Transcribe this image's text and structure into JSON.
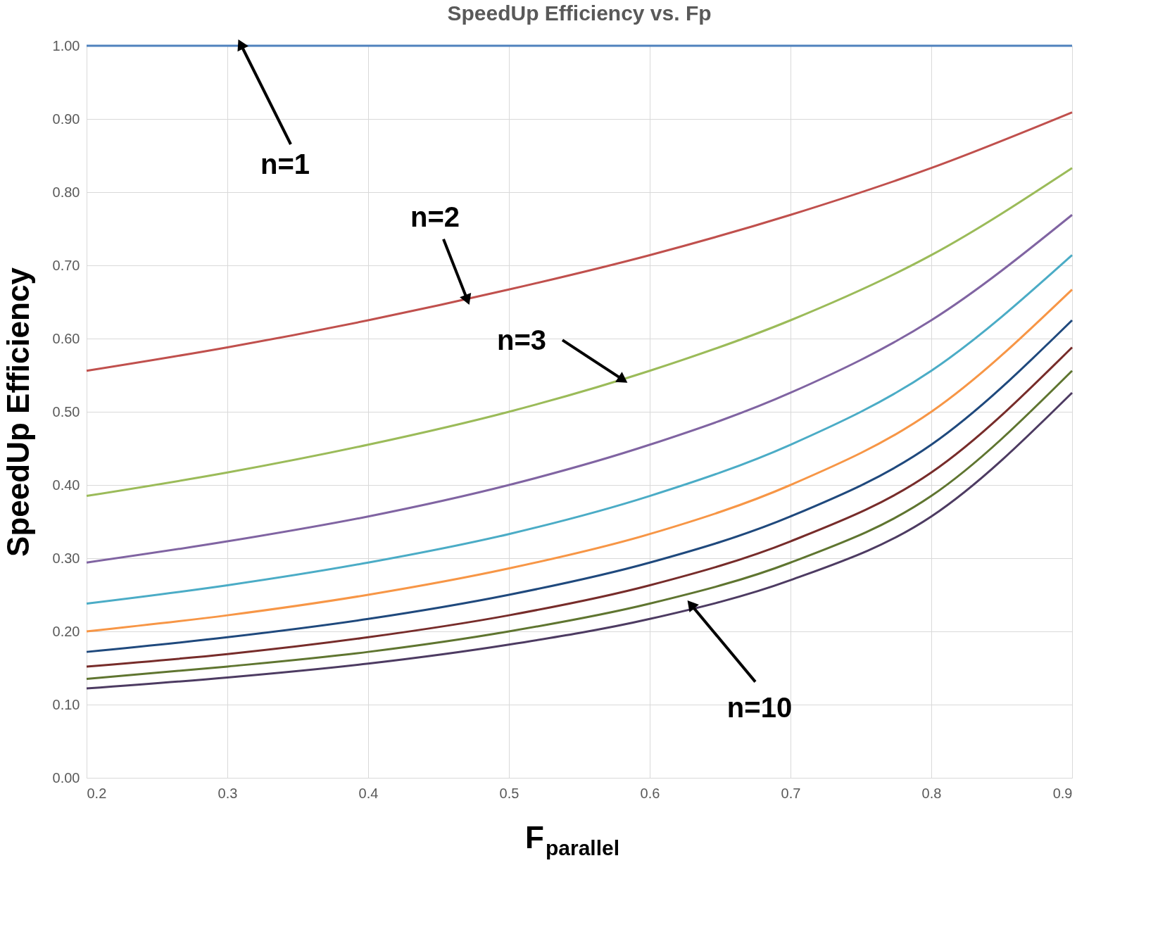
{
  "chart_data": {
    "type": "line",
    "title": "SpeedUp Efficiency vs. Fp",
    "xlabel": "F$_{parallel}$",
    "ylabel": "SpeedUp Efficiency",
    "x": [
      0.2,
      0.3,
      0.4,
      0.5,
      0.6,
      0.7,
      0.8,
      0.9
    ],
    "series": [
      {
        "color": "#4f81bd",
        "values": [
          1.0,
          1.0,
          1.0,
          1.0,
          1.0,
          1.0,
          1.0,
          1.0
        ]
      },
      {
        "color": "#c0504d",
        "values": [
          0.556,
          0.588,
          0.625,
          0.667,
          0.714,
          0.769,
          0.833,
          0.909
        ]
      },
      {
        "color": "#9bbb59",
        "values": [
          0.385,
          0.417,
          0.455,
          0.5,
          0.556,
          0.625,
          0.714,
          0.833
        ]
      },
      {
        "color": "#8064a2",
        "values": [
          0.294,
          0.323,
          0.357,
          0.4,
          0.455,
          0.526,
          0.625,
          0.769
        ]
      },
      {
        "color": "#4bacc6",
        "values": [
          0.238,
          0.263,
          0.294,
          0.333,
          0.385,
          0.455,
          0.556,
          0.714
        ]
      },
      {
        "color": "#f79646",
        "values": [
          0.2,
          0.222,
          0.25,
          0.286,
          0.333,
          0.4,
          0.5,
          0.667
        ]
      },
      {
        "color": "#1f497d",
        "values": [
          0.172,
          0.192,
          0.217,
          0.25,
          0.294,
          0.357,
          0.455,
          0.625
        ]
      },
      {
        "color": "#772c2a",
        "values": [
          0.152,
          0.169,
          0.192,
          0.222,
          0.263,
          0.323,
          0.417,
          0.588
        ]
      },
      {
        "color": "#5f7530",
        "values": [
          0.135,
          0.152,
          0.172,
          0.2,
          0.238,
          0.294,
          0.385,
          0.556
        ]
      },
      {
        "color": "#4d3b62",
        "values": [
          0.122,
          0.137,
          0.156,
          0.182,
          0.217,
          0.27,
          0.357,
          0.526
        ]
      }
    ],
    "xlim": [
      0.2,
      0.9
    ],
    "xticks": [
      0.2,
      0.3,
      0.4,
      0.5,
      0.6,
      0.7,
      0.8,
      0.9
    ],
    "ylim": [
      0,
      1.0
    ],
    "yticks": [
      {
        "value": 0,
        "label": "0.00"
      },
      {
        "value": 0.1,
        "label": "0.10"
      },
      {
        "value": 0.2,
        "label": "0.20"
      },
      {
        "value": 0.3,
        "label": "0.30"
      },
      {
        "value": 0.4,
        "label": "0.40"
      },
      {
        "value": 0.5,
        "label": "0.50"
      },
      {
        "value": 0.6,
        "label": "0.60"
      },
      {
        "value": 0.7,
        "label": "0.70"
      },
      {
        "value": 0.8,
        "label": "0.80"
      },
      {
        "value": 0.9,
        "label": "0.90"
      },
      {
        "value": 1.0,
        "label": "1.00"
      }
    ],
    "annotations": [
      {
        "text": "n=1",
        "x": 0.31,
        "y": 1.0
      },
      {
        "text": "n=2",
        "x": 0.47,
        "y": 0.655
      },
      {
        "text": "n=3",
        "x": 0.58,
        "y": 0.545
      },
      {
        "text": "n=10",
        "x": 0.63,
        "y": 0.235
      }
    ],
    "grid": true,
    "legend": false,
    "marker": "none",
    "line_style": "solid"
  }
}
